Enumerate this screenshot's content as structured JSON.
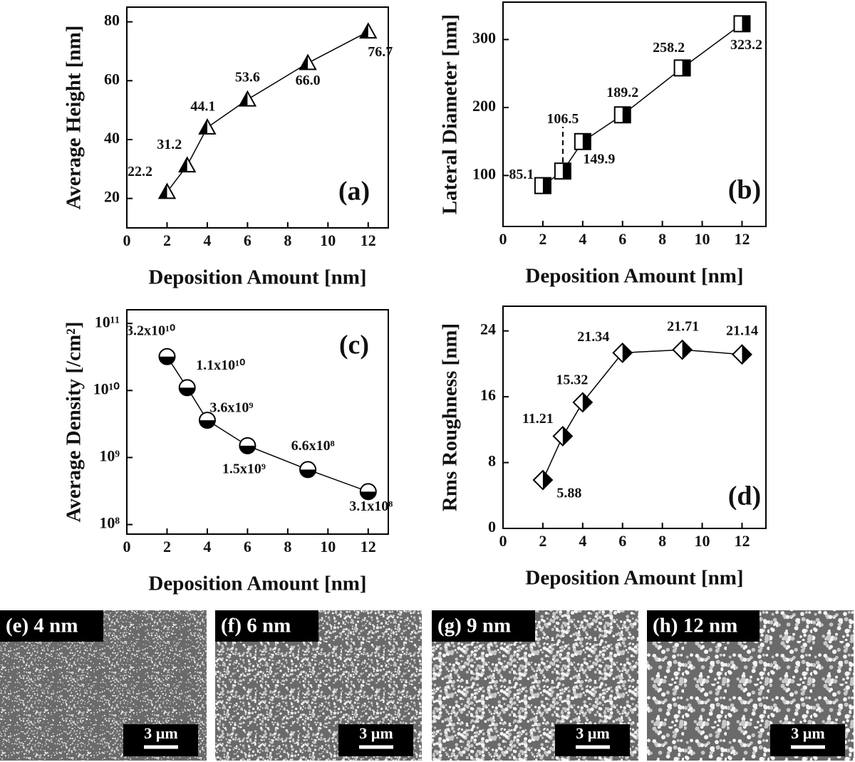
{
  "chart_data": [
    {
      "type": "line",
      "marker": "triangle",
      "x_label": "Deposition Amount [nm]",
      "y_label": "Average Height [nm]",
      "annotation": "(a)",
      "x": [
        2,
        3,
        4,
        6,
        9,
        12
      ],
      "values": [
        22.2,
        31.2,
        44.1,
        53.6,
        66.0,
        76.7
      ],
      "value_labels": [
        "22.2",
        "31.2",
        "44.1",
        "53.6",
        "66.0",
        "76.7"
      ],
      "color": "#000000",
      "xlim": [
        0,
        13
      ],
      "xticks": [
        0,
        2,
        4,
        6,
        8,
        10,
        12
      ],
      "ylim": [
        10,
        85
      ],
      "yticks": [
        20,
        40,
        60,
        80
      ]
    },
    {
      "type": "line",
      "marker": "square",
      "x_label": "Deposition Amount [nm]",
      "y_label": "Lateral Diameter [nm]",
      "annotation": "(b)",
      "x": [
        2,
        3,
        4,
        6,
        9,
        12
      ],
      "values": [
        85.1,
        106.5,
        149.9,
        189.2,
        258.2,
        323.2
      ],
      "color": "#000000",
      "xlim": [
        0,
        13.2
      ],
      "xticks": [
        0,
        2,
        4,
        6,
        8,
        10,
        12
      ],
      "ylim": [
        25,
        355
      ],
      "yticks": [
        100,
        200,
        300
      ]
    },
    {
      "type": "line",
      "marker": "circle",
      "x_label": "Deposition Amount [nm]",
      "y_label": "Average Density [/cm²]",
      "annotation": "(c)",
      "log_y": true,
      "x": [
        2,
        3,
        4,
        6,
        9,
        12
      ],
      "values": [
        32000000000,
        11000000000,
        3600000000,
        1500000000,
        660000000,
        310000000
      ],
      "value_labels": [
        "3.2x10¹⁰",
        "1.1x10¹⁰",
        "3.6x10⁹",
        "1.5x10⁹",
        "6.6x10⁸",
        "3.1x10⁸"
      ],
      "color": "#000000",
      "xlim": [
        0,
        13
      ],
      "xticks": [
        0,
        2,
        4,
        6,
        8,
        10,
        12
      ],
      "ylim": [
        72000000,
        160000000000
      ],
      "yticks": [
        {
          "value": 100000000,
          "label": "10⁸"
        },
        {
          "value": 1000000000,
          "label": "10⁹"
        },
        {
          "value": 10000000000,
          "label": "10¹⁰"
        },
        {
          "value": 100000000000,
          "label": "10¹¹"
        }
      ]
    },
    {
      "type": "line",
      "marker": "diamond",
      "x_label": "Deposition Amount [nm]",
      "y_label": "Rms Roughness [nm]",
      "annotation": "(d)",
      "x": [
        2,
        3,
        4,
        6,
        9,
        12
      ],
      "values": [
        5.88,
        11.21,
        15.32,
        21.34,
        21.71,
        21.14
      ],
      "color": "#000000",
      "xlim": [
        0,
        13.2
      ],
      "xticks": [
        0,
        2,
        4,
        6,
        8,
        10,
        12
      ],
      "ylim": [
        0,
        27
      ],
      "yticks": [
        0,
        8,
        16,
        24
      ]
    }
  ],
  "images": [
    {
      "label": "(e) 4 nm",
      "scale": "3 µm"
    },
    {
      "label": "(f) 6 nm",
      "scale": "3 µm"
    },
    {
      "label": "(g) 9 nm",
      "scale": "3 µm"
    },
    {
      "label": "(h) 12 nm",
      "scale": "3 µm"
    }
  ]
}
